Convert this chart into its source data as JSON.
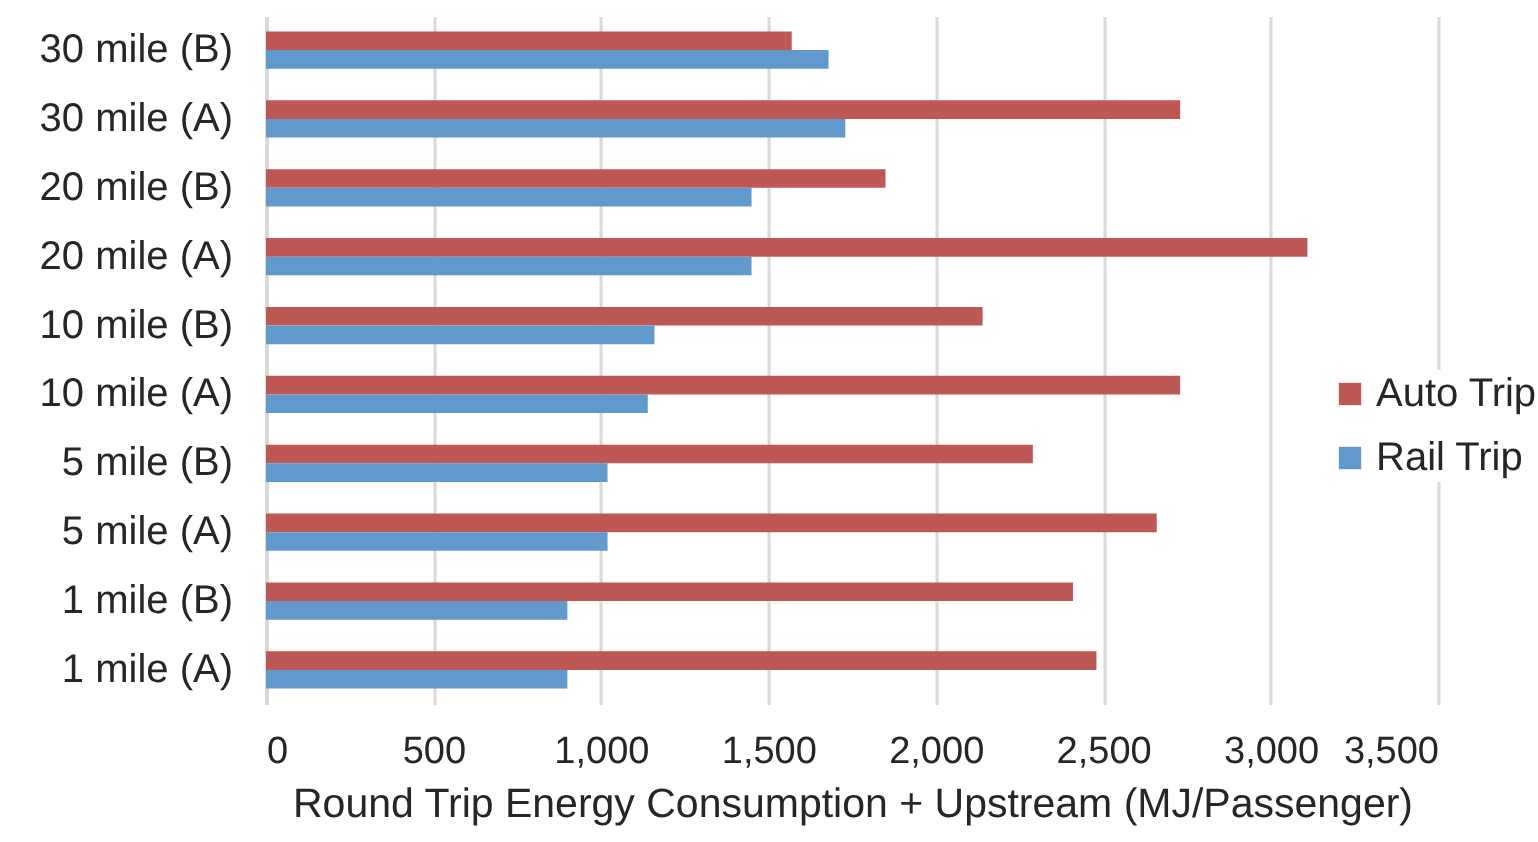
{
  "chart_data": {
    "type": "bar",
    "orientation": "horizontal",
    "categories": [
      "30 mile (B)",
      "30 mile (A)",
      "20 mile (B)",
      "20 mile (A)",
      "10 mile (B)",
      "10 mile (A)",
      "5 mile (B)",
      "5 mile (A)",
      "1 mile (B)",
      "1 mile (A)"
    ],
    "series": [
      {
        "name": "Auto Trip",
        "color": "#be5855",
        "values": [
          1570,
          2730,
          1850,
          3110,
          2140,
          2730,
          2290,
          2660,
          2410,
          2480
        ]
      },
      {
        "name": "Rail Trip",
        "color": "#6299cc",
        "values": [
          1680,
          1730,
          1450,
          1450,
          1160,
          1140,
          1020,
          1020,
          900,
          900
        ]
      }
    ],
    "xlabel": "Round Trip Energy Consumption + Upstream (MJ/Passenger)",
    "xlim": [
      0,
      3500
    ],
    "xticks": [
      0,
      500,
      {
        "value": 1000,
        "label": "1,000"
      },
      {
        "value": 1500,
        "label": "1,500"
      },
      {
        "value": 2000,
        "label": "2,000"
      },
      {
        "value": 2500,
        "label": "2,500"
      },
      {
        "value": 3000,
        "label": "3,000"
      },
      {
        "value": 3500,
        "label": "3,500"
      }
    ],
    "grid": "x",
    "legend": "right"
  }
}
